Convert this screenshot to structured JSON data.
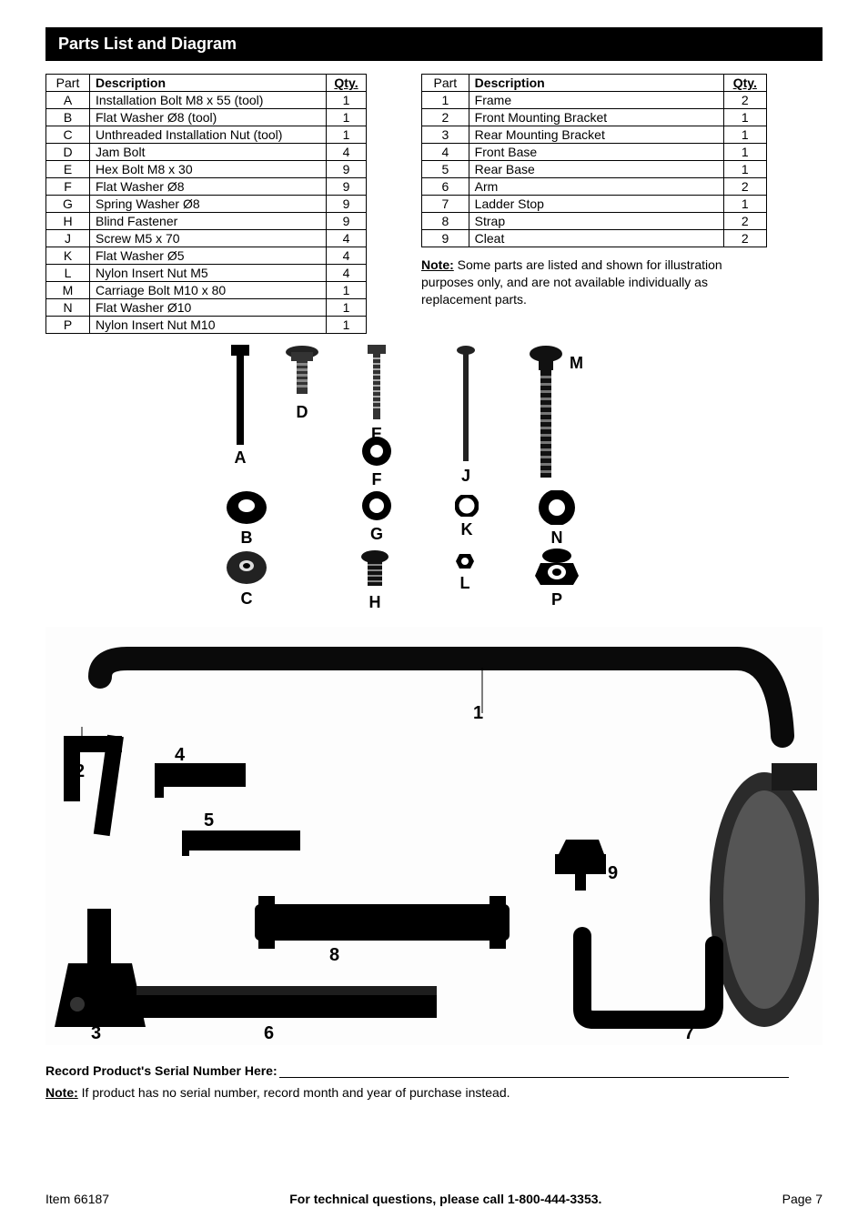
{
  "section_header": "Parts List and Diagram",
  "tableA": {
    "headers": {
      "part": "Part",
      "desc": "Description",
      "qty": "Qty."
    },
    "rows": [
      {
        "part": "A",
        "desc": "Installation Bolt M8 x 55 (tool)",
        "qty": "1"
      },
      {
        "part": "B",
        "desc": "Flat Washer Ø8 (tool)",
        "qty": "1"
      },
      {
        "part": "C",
        "desc": "Unthreaded Installation Nut (tool)",
        "qty": "1"
      },
      {
        "part": "D",
        "desc": "Jam Bolt",
        "qty": "4"
      },
      {
        "part": "E",
        "desc": "Hex Bolt M8 x 30",
        "qty": "9"
      },
      {
        "part": "F",
        "desc": "Flat Washer Ø8",
        "qty": "9"
      },
      {
        "part": "G",
        "desc": "Spring Washer Ø8",
        "qty": "9"
      },
      {
        "part": "H",
        "desc": "Blind Fastener",
        "qty": "9"
      },
      {
        "part": "J",
        "desc": "Screw M5 x 70",
        "qty": "4"
      },
      {
        "part": "K",
        "desc": "Flat Washer Ø5",
        "qty": "4"
      },
      {
        "part": "L",
        "desc": "Nylon Insert Nut M5",
        "qty": "4"
      },
      {
        "part": "M",
        "desc": "Carriage Bolt M10 x 80",
        "qty": "1"
      },
      {
        "part": "N",
        "desc": "Flat Washer Ø10",
        "qty": "1"
      },
      {
        "part": "P",
        "desc": "Nylon Insert Nut M10",
        "qty": "1"
      }
    ]
  },
  "tableB": {
    "headers": {
      "part": "Part",
      "desc": "Description",
      "qty": "Qty."
    },
    "rows": [
      {
        "part": "1",
        "desc": "Frame",
        "qty": "2"
      },
      {
        "part": "2",
        "desc": "Front Mounting Bracket",
        "qty": "1"
      },
      {
        "part": "3",
        "desc": "Rear Mounting Bracket",
        "qty": "1"
      },
      {
        "part": "4",
        "desc": "Front Base",
        "qty": "1"
      },
      {
        "part": "5",
        "desc": "Rear Base",
        "qty": "1"
      },
      {
        "part": "6",
        "desc": "Arm",
        "qty": "2"
      },
      {
        "part": "7",
        "desc": "Ladder Stop",
        "qty": "1"
      },
      {
        "part": "8",
        "desc": "Strap",
        "qty": "2"
      },
      {
        "part": "9",
        "desc": "Cleat",
        "qty": "2"
      }
    ]
  },
  "note": {
    "label": "Note:",
    "text": "   Some parts are listed and shown for illustration purposes only, and are not available individually as replacement parts."
  },
  "hardware_labels": {
    "A": "A",
    "B": "B",
    "C": "C",
    "D": "D",
    "E": "E",
    "F": "F",
    "G": "G",
    "H": "H",
    "J": "J",
    "K": "K",
    "L": "L",
    "M": "M",
    "N": "N",
    "P": "P"
  },
  "assembly_numbers": [
    "1",
    "2",
    "3",
    "4",
    "5",
    "6",
    "7",
    "8",
    "9"
  ],
  "serial": {
    "label": "Record Product's Serial Number Here:",
    "note_label": "Note:",
    "note_text": " If product has no serial number, record month and year of purchase instead."
  },
  "footer": {
    "left": "Item 66187",
    "center": "For technical questions, please call 1-800-444-3353.",
    "right": "Page 7"
  },
  "colors": {
    "black": "#000000",
    "dark": "#1a1a1a",
    "mid": "#3a3a3a",
    "light": "#cfcfcf"
  }
}
